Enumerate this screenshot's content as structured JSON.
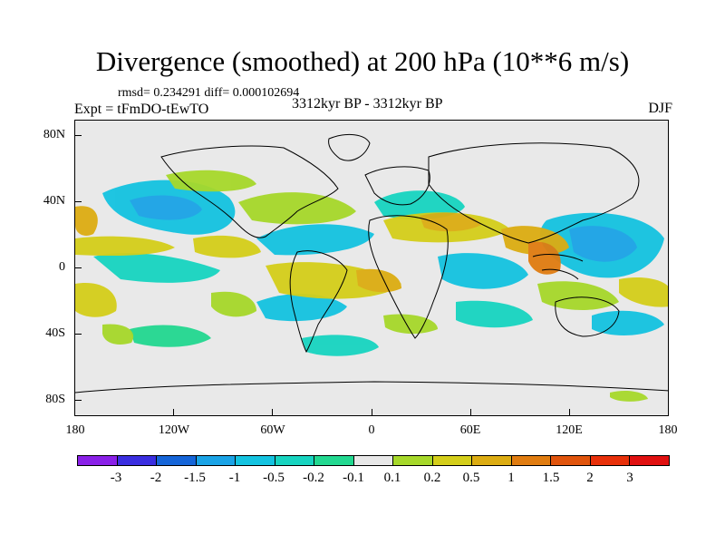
{
  "title": "Divergence (smoothed) at 200 hPa (10**6 m/s)",
  "stats": "rmsd= 0.234291 diff= 0.000102694",
  "experiment": "Expt = tFmDO-tEwTO",
  "period": "3312kyr BP - 3312kyr BP",
  "season": "DJF",
  "axes": {
    "y_labels": [
      "80N",
      "40N",
      "0",
      "40S",
      "80S"
    ],
    "x_labels": [
      "180",
      "120W",
      "60W",
      "0",
      "60E",
      "120E",
      "180"
    ]
  },
  "colorbar": {
    "labels": [
      "-3",
      "-2",
      "-1.5",
      "-1",
      "-0.5",
      "-0.2",
      "-0.1",
      "0.1",
      "0.2",
      "0.5",
      "1",
      "1.5",
      "2",
      "3"
    ],
    "colors": [
      "#8a20e8",
      "#3a2ee0",
      "#1565d8",
      "#1aa3e6",
      "#14c3e0",
      "#17d4c0",
      "#22d890",
      "#e8e8e8",
      "#a6d82a",
      "#d4ce1a",
      "#dcac12",
      "#e07c10",
      "#e0540c",
      "#e8300a",
      "#e01010"
    ]
  },
  "map": {
    "background_color": "#e9e9e9",
    "coast_color": "#000000"
  }
}
